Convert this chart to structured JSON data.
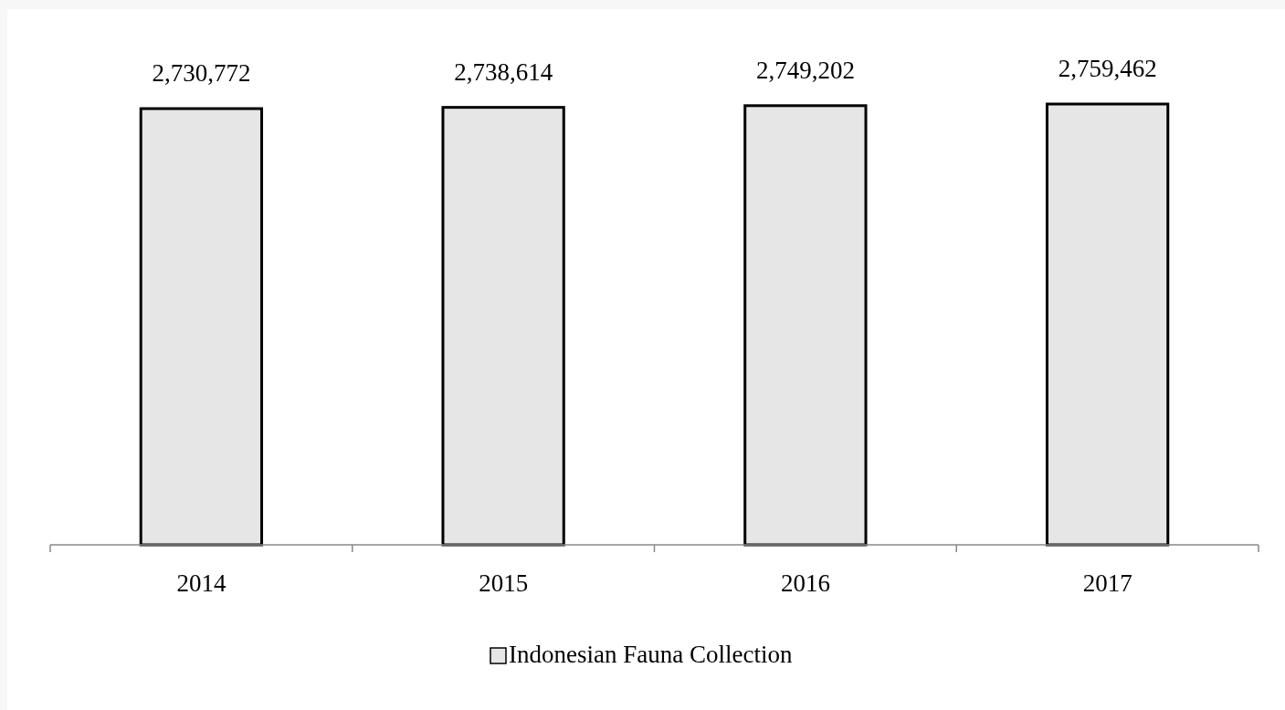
{
  "chart_data": {
    "type": "bar",
    "categories": [
      "2014",
      "2015",
      "2016",
      "2017"
    ],
    "series": [
      {
        "name": "Indonesian Fauna Collection",
        "color": "#e6e6e6",
        "values": [
          2730772,
          2738614,
          2749202,
          2759462
        ],
        "value_labels": [
          "2,730,772",
          "2,738,614",
          "2,749,202",
          "2,759,462"
        ]
      }
    ],
    "tick_labels": "x",
    "legend": "bottom"
  }
}
